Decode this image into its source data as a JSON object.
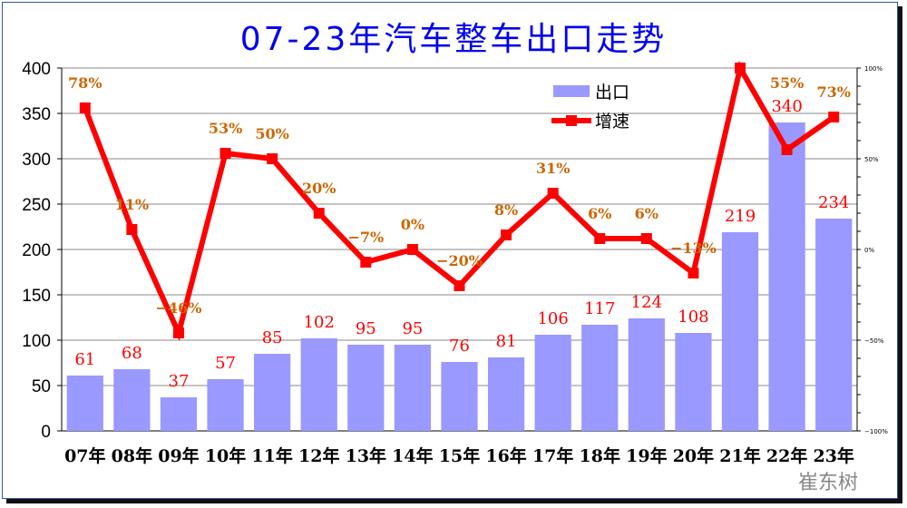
{
  "chart_data": {
    "type": "bar+line",
    "title": "07-23年汽车整车出口走势",
    "categories": [
      "07年",
      "08年",
      "09年",
      "10年",
      "11年",
      "12年",
      "13年",
      "14年",
      "15年",
      "16年",
      "17年",
      "18年",
      "19年",
      "20年",
      "21年",
      "22年",
      "23年"
    ],
    "series": [
      {
        "name": "出口",
        "type": "bar",
        "axis": "left",
        "color": "#9999ff",
        "values": [
          61,
          68,
          37,
          57,
          85,
          102,
          95,
          95,
          76,
          81,
          106,
          117,
          124,
          108,
          219,
          340,
          234
        ]
      },
      {
        "name": "增速",
        "type": "line",
        "axis": "right",
        "color": "#ff0000",
        "unit": "%",
        "values": [
          78,
          11,
          -46,
          53,
          50,
          20,
          -7,
          0,
          -20,
          8,
          31,
          6,
          6,
          -13,
          100,
          55,
          73
        ],
        "labels": [
          "78%",
          "11%",
          "-46%",
          "53%",
          "50%",
          "20%",
          "-7%",
          "0%",
          "-20%",
          "8%",
          "31%",
          "6%",
          "6%",
          "-13%",
          "",
          "55%",
          "73%"
        ]
      }
    ],
    "ylim_left": [
      0,
      400
    ],
    "yticks_left": [
      0,
      50,
      100,
      150,
      200,
      250,
      300,
      350,
      400
    ],
    "ylim_right": [
      -100,
      100
    ],
    "yticks_right": [
      "-100%",
      "-50%",
      "0%",
      "50%",
      "100%"
    ],
    "grid": true,
    "legend": "top-right",
    "bar_label_color": "#ff0000",
    "line_label_color": "#cc6600"
  },
  "watermark": "崔东树",
  "title_color": "#0000ee"
}
